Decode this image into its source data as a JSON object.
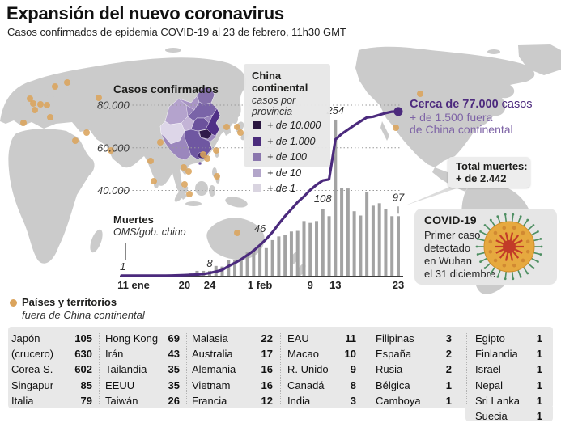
{
  "header": {
    "title": "Expansión del nuevo coronavirus",
    "subtitle": "Casos confirmados de epidemia COVID-19 al 23 de febrero, 11h30 GMT"
  },
  "map": {
    "land_color": "#cbcbcb",
    "dot_color": "#dba45c",
    "china_shades": [
      "#2f1b4a",
      "#4b2c7c",
      "#8a76ad",
      "#b3a6ca",
      "#d9d4e0"
    ]
  },
  "legend": {
    "title": "China continental",
    "subtitle": "casos por provincia",
    "items": [
      {
        "label": "+ de 10.000",
        "color": "#2a1640"
      },
      {
        "label": "+ de 1.000",
        "color": "#4b2c7c"
      },
      {
        "label": "+ de 100",
        "color": "#8a76ad"
      },
      {
        "label": "+ de 10",
        "color": "#b3a6ca"
      },
      {
        "label": "+ de 1",
        "color": "#d9d4e0"
      }
    ]
  },
  "chart_data": {
    "type": "line+bar",
    "cases_label": "Casos confirmados",
    "deaths_label": "Muertes",
    "deaths_source": "OMS/gob. chino",
    "first_death_label": "1",
    "line_color": "#4b2a7d",
    "bar_color": "#a3a3a3",
    "ylim": [
      0,
      80000
    ],
    "y_ticks": [
      {
        "label": "80.000",
        "value": 80000
      },
      {
        "label": "60.000",
        "value": 60000
      },
      {
        "label": "40.000",
        "value": 40000
      }
    ],
    "x_ticks": [
      {
        "label": "11 ene",
        "day": 0
      },
      {
        "label": "20",
        "day": 9
      },
      {
        "label": "24",
        "day": 13
      },
      {
        "label": "1 feb",
        "day": 21
      },
      {
        "label": "9",
        "day": 29
      },
      {
        "label": "13",
        "day": 33
      },
      {
        "label": "23",
        "day": 43
      }
    ],
    "cases_series": {
      "name": "Casos confirmados (acumulados, 11 ene - 23 feb)",
      "values": [
        41,
        41,
        41,
        41,
        41,
        45,
        62,
        121,
        198,
        291,
        440,
        571,
        830,
        1287,
        1975,
        2744,
        4515,
        5974,
        7711,
        9692,
        11791,
        14380,
        17205,
        20438,
        24324,
        28018,
        31161,
        34546,
        37198,
        40171,
        42638,
        44653,
        45204,
        63851,
        66492,
        68500,
        70548,
        72436,
        74185,
        74576,
        75465,
        76288,
        76936,
        77000
      ]
    },
    "deaths_series": {
      "name": "Muertes diarias (21 ene - 23 feb)",
      "start_day": 10,
      "values": [
        4,
        8,
        8,
        8,
        16,
        15,
        25,
        25,
        26,
        38,
        43,
        46,
        45,
        58,
        64,
        66,
        72,
        73,
        89,
        86,
        89,
        108,
        97,
        254,
        143,
        142,
        105,
        98,
        136,
        114,
        118,
        109,
        97,
        97
      ]
    },
    "death_labels": [
      {
        "day": 13,
        "text": "8",
        "lift": 0
      },
      {
        "day": 21,
        "text": "46",
        "lift": 14
      },
      {
        "day": 31,
        "text": "108",
        "lift": 4
      },
      {
        "day": 33,
        "text": "254",
        "lift": 2
      },
      {
        "day": 43,
        "text": "97",
        "lift": 14,
        "tick": true
      }
    ]
  },
  "annotations": {
    "cases": {
      "bold": "Cerca de 77.000",
      "rest": " casos",
      "line2": "+ de 1.500 fuera",
      "line3": "de China continental"
    },
    "total_deaths": {
      "line1": "Total muertes:",
      "line2": "+ de 2.442"
    },
    "covid": {
      "title": "COVID-19",
      "lines": [
        "Primer caso",
        "detectado",
        "en Wuhan",
        "el 31 diciembre"
      ]
    }
  },
  "footer": {
    "title": "Países y territorios",
    "subtitle": "fuera de China continental"
  },
  "table": {
    "columns": [
      {
        "rows": [
          [
            "Japón",
            "105"
          ],
          [
            "(crucero)",
            "630"
          ],
          [
            "Corea S.",
            "602"
          ],
          [
            "Singapur",
            "85"
          ],
          [
            "Italia",
            "79"
          ]
        ]
      },
      {
        "rows": [
          [
            "Hong Kong",
            "69"
          ],
          [
            "Irán",
            "43"
          ],
          [
            "Tailandia",
            "35"
          ],
          [
            "EEUU",
            "35"
          ],
          [
            "Taiwán",
            "26"
          ]
        ]
      },
      {
        "rows": [
          [
            "Malasia",
            "22"
          ],
          [
            "Australia",
            "17"
          ],
          [
            "Alemania",
            "16"
          ],
          [
            "Vietnam",
            "16"
          ],
          [
            "Francia",
            "12"
          ]
        ]
      },
      {
        "rows": [
          [
            "EAU",
            "11"
          ],
          [
            "Macao",
            "10"
          ],
          [
            "R. Unido",
            "9"
          ],
          [
            "Canadá",
            "8"
          ],
          [
            "India",
            "3"
          ]
        ]
      },
      {
        "rows": [
          [
            "Filipinas",
            "3"
          ],
          [
            "España",
            "2"
          ],
          [
            "Rusia",
            "2"
          ],
          [
            "Bélgica",
            "1"
          ],
          [
            "Camboya",
            "1"
          ]
        ]
      },
      {
        "rows": [
          [
            "Egipto",
            "1"
          ],
          [
            "Finlandia",
            "1"
          ],
          [
            "Israel",
            "1"
          ],
          [
            "Nepal",
            "1"
          ],
          [
            "Sri Lanka",
            "1"
          ],
          [
            "Suecia",
            "1"
          ]
        ]
      }
    ]
  }
}
